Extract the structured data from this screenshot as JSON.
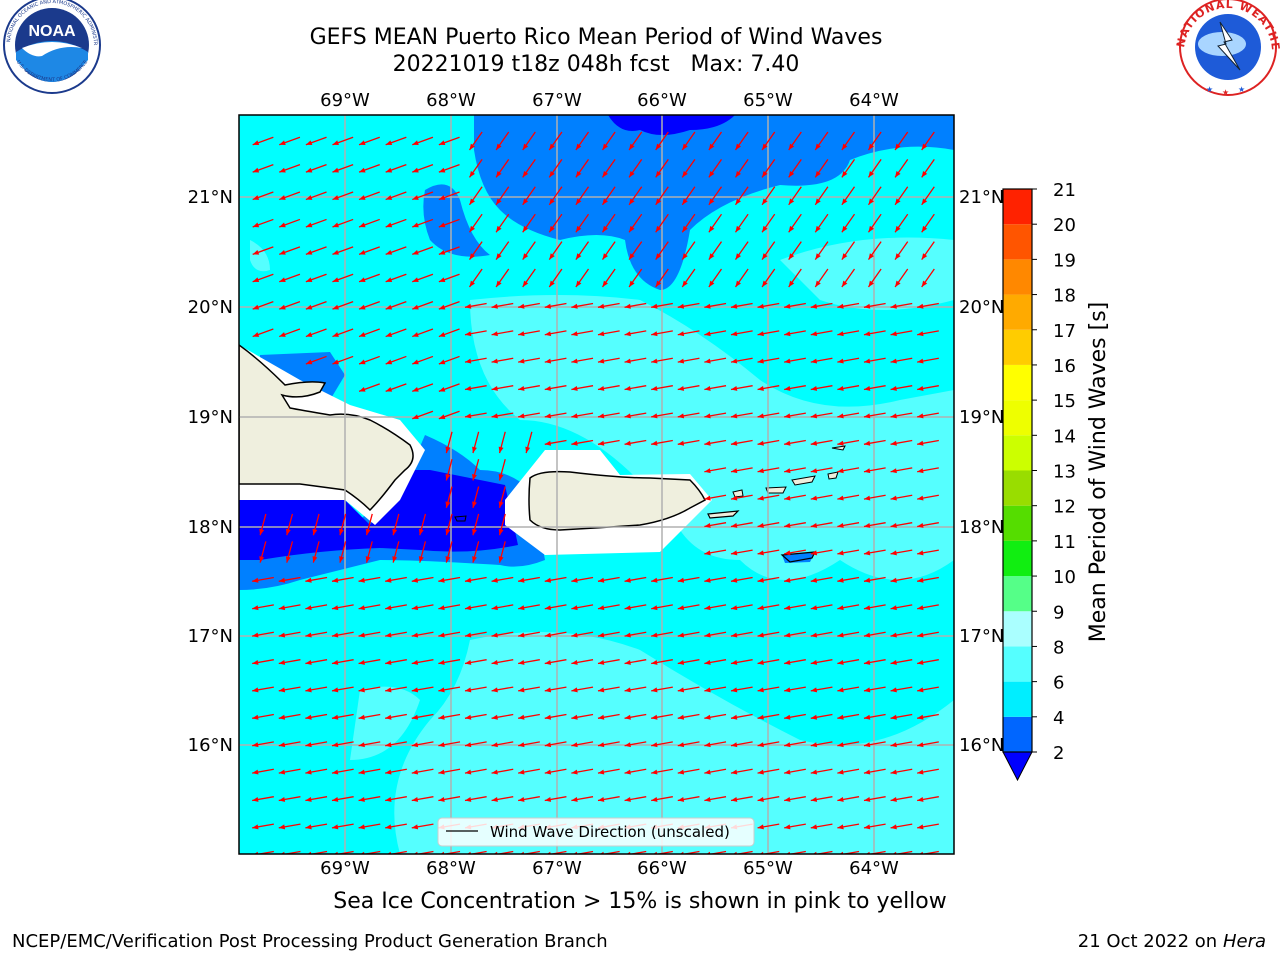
{
  "header": {
    "title_line1": "GEFS MEAN Puerto Rico Mean Period of Wind Waves",
    "title_line2": "20221019 t18z 048h fcst   Max: 7.40"
  },
  "logos": {
    "left": {
      "name": "NOAA",
      "ring_text": "NATIONAL OCEANIC AND ATMOSPHERIC ADMINISTRATION",
      "bottom_text": "U.S. DEPARTMENT OF COMMERCE"
    },
    "right": {
      "ring_text": "NATIONAL WEATHER SERVICE"
    }
  },
  "map": {
    "lon_labels": [
      "69°W",
      "68°W",
      "67°W",
      "66°W",
      "65°W",
      "64°W"
    ],
    "lat_labels": [
      "21°N",
      "20°N",
      "19°N",
      "18°N",
      "17°N",
      "16°N"
    ],
    "legend_label": "Wind Wave Direction (unscaled)",
    "colors": {
      "ocean_light": "#00ffff",
      "ocean_pale": "#55ffff",
      "ocean_mid": "#0080ff",
      "ocean_deep": "#0000ff",
      "land": "#efefde",
      "arrow": "#ff0000",
      "grid": "#b0b0b0"
    }
  },
  "colorbar": {
    "label": "Mean Period of Wind Waves [s]",
    "ticks": [
      "2",
      "4",
      "6",
      "8",
      "9",
      "10",
      "11",
      "12",
      "13",
      "14",
      "15",
      "16",
      "17",
      "18",
      "19",
      "20",
      "21"
    ],
    "colors": [
      "#0066ff",
      "#00eeff",
      "#55ffff",
      "#aaffff",
      "#55ff88",
      "#11ee11",
      "#55dd00",
      "#99dd00",
      "#ccff00",
      "#eeff00",
      "#ffff00",
      "#ffcc00",
      "#ffaa00",
      "#ff8800",
      "#ff5500",
      "#ff2200",
      "#ff0000"
    ],
    "under_color": "#0000ff"
  },
  "footer": {
    "note": "Sea Ice Concentration > 15% is shown in pink to yellow",
    "left_credit": "NCEP/EMC/Verification Post Processing Product Generation Branch",
    "date": "21 Oct 2022 on",
    "machine": "Hera"
  }
}
